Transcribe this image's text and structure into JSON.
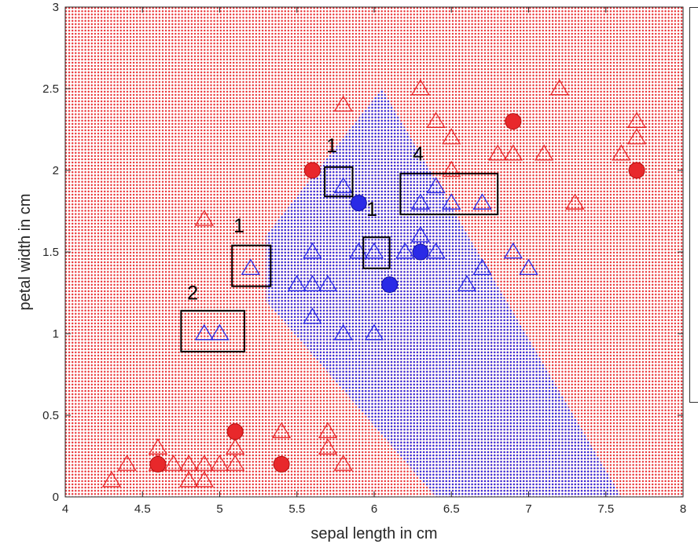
{
  "chart_data": {
    "type": "scatter",
    "xlabel": "sepal length in cm",
    "ylabel": "petal width in cm",
    "xlim": [
      4,
      8
    ],
    "ylim": [
      0,
      3
    ],
    "xticks": [
      "4",
      "4.5",
      "5",
      "5.5",
      "6",
      "6.5",
      "7",
      "7.5",
      "8"
    ],
    "yticks": [
      "0",
      "0.5",
      "1",
      "1.5",
      "2",
      "2.5",
      "3"
    ],
    "grid": false,
    "background_grid": {
      "description": "dense dotted decision-region mesh",
      "class_a_color": "#e8282b",
      "class_b_color": "#2a2ae6",
      "class_b_region_polygon": [
        [
          6.05,
          2.5
        ],
        [
          7.6,
          0.0
        ],
        [
          6.4,
          0.0
        ],
        [
          5.3,
          1.2
        ],
        [
          5.3,
          1.6
        ]
      ]
    },
    "colors": {
      "class_a": "#e8282b",
      "class_b": "#2a2ae6"
    },
    "circles_red": [
      [
        4.6,
        0.2
      ],
      [
        5.1,
        0.4
      ],
      [
        5.4,
        0.2
      ],
      [
        5.6,
        2.0
      ],
      [
        6.9,
        2.3
      ],
      [
        7.7,
        2.0
      ]
    ],
    "circles_blue": [
      [
        5.9,
        1.8
      ],
      [
        6.1,
        1.3
      ],
      [
        6.3,
        1.5
      ]
    ],
    "triangles_red": [
      [
        4.3,
        0.1
      ],
      [
        4.4,
        0.2
      ],
      [
        4.6,
        0.3
      ],
      [
        4.6,
        0.2
      ],
      [
        4.7,
        0.2
      ],
      [
        4.8,
        0.1
      ],
      [
        4.8,
        0.2
      ],
      [
        4.9,
        0.1
      ],
      [
        4.9,
        0.2
      ],
      [
        5.0,
        0.2
      ],
      [
        5.1,
        0.2
      ],
      [
        5.1,
        0.3
      ],
      [
        5.4,
        0.4
      ],
      [
        5.7,
        0.4
      ],
      [
        5.7,
        0.3
      ],
      [
        5.8,
        0.2
      ],
      [
        4.9,
        1.7
      ],
      [
        5.8,
        2.4
      ],
      [
        6.3,
        2.5
      ],
      [
        6.4,
        2.3
      ],
      [
        6.5,
        2.2
      ],
      [
        6.5,
        2.0
      ],
      [
        6.8,
        2.1
      ],
      [
        6.9,
        2.1
      ],
      [
        7.1,
        2.1
      ],
      [
        7.2,
        2.5
      ],
      [
        7.3,
        1.8
      ],
      [
        7.6,
        2.1
      ],
      [
        7.7,
        2.3
      ],
      [
        7.7,
        2.2
      ]
    ],
    "triangles_blue": [
      [
        5.5,
        1.3
      ],
      [
        5.6,
        1.3
      ],
      [
        5.7,
        1.3
      ],
      [
        5.6,
        1.1
      ],
      [
        5.6,
        1.5
      ],
      [
        5.8,
        1.0
      ],
      [
        6.0,
        1.0
      ],
      [
        5.9,
        1.5
      ],
      [
        6.2,
        1.5
      ],
      [
        6.3,
        1.6
      ],
      [
        6.4,
        1.5
      ],
      [
        6.6,
        1.3
      ],
      [
        6.7,
        1.4
      ],
      [
        6.9,
        1.5
      ],
      [
        7.0,
        1.4
      ],
      [
        4.9,
        1.0
      ],
      [
        5.0,
        1.0
      ],
      [
        5.2,
        1.4
      ],
      [
        5.8,
        1.9
      ],
      [
        6.0,
        1.5
      ],
      [
        6.3,
        1.8
      ],
      [
        6.4,
        1.9
      ],
      [
        6.5,
        1.8
      ],
      [
        6.7,
        1.8
      ]
    ],
    "annotations": [
      {
        "text": "1",
        "box": [
          5.08,
          5.33,
          1.29,
          1.54
        ],
        "label_at": [
          5.09,
          1.62
        ]
      },
      {
        "text": "2",
        "box": [
          4.75,
          5.16,
          0.89,
          1.14
        ],
        "label_at": [
          4.79,
          1.21
        ]
      },
      {
        "text": "1",
        "box": [
          5.68,
          5.86,
          1.84,
          2.02
        ],
        "label_at": [
          5.69,
          2.11
        ]
      },
      {
        "text": "1",
        "box": [
          5.93,
          6.1,
          1.4,
          1.59
        ],
        "label_at": [
          5.95,
          1.72
        ]
      },
      {
        "text": "4",
        "box": [
          6.17,
          6.8,
          1.73,
          1.98
        ],
        "label_at": [
          6.25,
          2.06
        ]
      }
    ]
  }
}
